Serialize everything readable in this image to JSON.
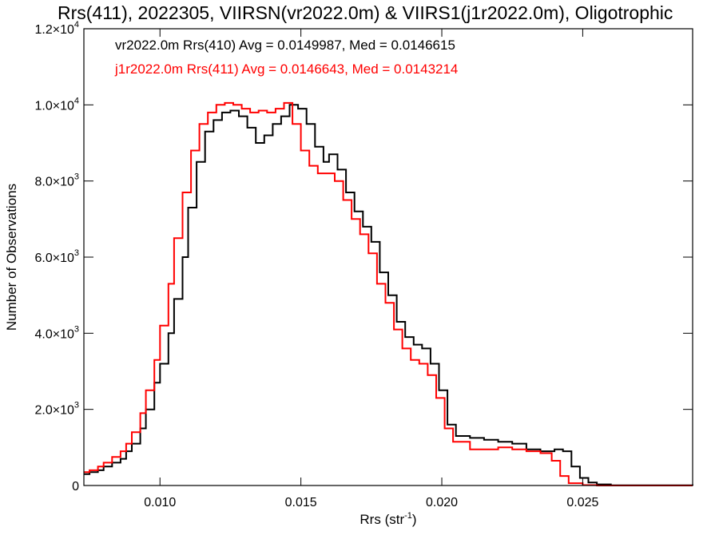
{
  "chart_data": {
    "type": "line",
    "title": "Rrs(411), 2022305, VIIRSN(vr2022.0m) & VIIRS1(j1r2022.0m), Oligotrophic",
    "xlabel": "Rrs (str",
    "xlabel_sup": "-1",
    "xlabel_end": ")",
    "ylabel": "Number of Observations",
    "xlim": [
      0.0073,
      0.0289
    ],
    "ylim": [
      0,
      12000
    ],
    "grid": false,
    "x_ticks": [
      {
        "value": 0.01,
        "label": "0.010"
      },
      {
        "value": 0.015,
        "label": "0.015"
      },
      {
        "value": 0.02,
        "label": "0.020"
      },
      {
        "value": 0.025,
        "label": "0.025"
      }
    ],
    "y_ticks": [
      {
        "value": 0,
        "mant": "0",
        "exp": ""
      },
      {
        "value": 2000,
        "mant": "2.0×10",
        "exp": "3"
      },
      {
        "value": 4000,
        "mant": "4.0×10",
        "exp": "3"
      },
      {
        "value": 6000,
        "mant": "6.0×10",
        "exp": "3"
      },
      {
        "value": 8000,
        "mant": "8.0×10",
        "exp": "3"
      },
      {
        "value": 10000,
        "mant": "1.0×10",
        "exp": "4"
      },
      {
        "value": 12000,
        "mant": "1.2×10",
        "exp": "4"
      }
    ],
    "annotations": [
      {
        "text": "vr2022.0m Rrs(410) Avg = 0.0149987, Med = 0.0146615",
        "color": "#000000"
      },
      {
        "text": "j1r2022.0m Rrs(411) Avg = 0.0146643, Med = 0.0143214",
        "color": "#ff0000"
      }
    ],
    "series": [
      {
        "color": "#000000",
        "points": [
          [
            0.0073,
            300
          ],
          [
            0.0075,
            350
          ],
          [
            0.0078,
            400
          ],
          [
            0.008,
            500
          ],
          [
            0.0083,
            600
          ],
          [
            0.0086,
            700
          ],
          [
            0.0088,
            900
          ],
          [
            0.009,
            1100
          ],
          [
            0.0093,
            1500
          ],
          [
            0.0095,
            2000
          ],
          [
            0.0098,
            2700
          ],
          [
            0.01,
            3200
          ],
          [
            0.0103,
            4000
          ],
          [
            0.0105,
            4900
          ],
          [
            0.0108,
            6000
          ],
          [
            0.011,
            7300
          ],
          [
            0.0113,
            8500
          ],
          [
            0.0116,
            9300
          ],
          [
            0.0119,
            9600
          ],
          [
            0.0122,
            9800
          ],
          [
            0.0125,
            9850
          ],
          [
            0.0128,
            9700
          ],
          [
            0.0131,
            9400
          ],
          [
            0.0134,
            9000
          ],
          [
            0.0137,
            9200
          ],
          [
            0.014,
            9500
          ],
          [
            0.0143,
            9700
          ],
          [
            0.0146,
            10000
          ],
          [
            0.0149,
            9900
          ],
          [
            0.0152,
            9500
          ],
          [
            0.0155,
            8900
          ],
          [
            0.0158,
            8500
          ],
          [
            0.016,
            8700
          ],
          [
            0.0163,
            8300
          ],
          [
            0.0166,
            7700
          ],
          [
            0.0169,
            7200
          ],
          [
            0.0172,
            6800
          ],
          [
            0.0175,
            6400
          ],
          [
            0.0178,
            5600
          ],
          [
            0.0181,
            5000
          ],
          [
            0.0184,
            4300
          ],
          [
            0.0187,
            3900
          ],
          [
            0.019,
            3700
          ],
          [
            0.0193,
            3600
          ],
          [
            0.0196,
            3200
          ],
          [
            0.0199,
            2500
          ],
          [
            0.0202,
            1600
          ],
          [
            0.0205,
            1300
          ],
          [
            0.021,
            1250
          ],
          [
            0.0215,
            1200
          ],
          [
            0.022,
            1150
          ],
          [
            0.0225,
            1100
          ],
          [
            0.023,
            950
          ],
          [
            0.0235,
            900
          ],
          [
            0.024,
            950
          ],
          [
            0.0243,
            900
          ],
          [
            0.0246,
            500
          ],
          [
            0.0249,
            200
          ],
          [
            0.0252,
            80
          ],
          [
            0.0255,
            30
          ],
          [
            0.026,
            5
          ],
          [
            0.0289,
            0
          ]
        ]
      },
      {
        "color": "#ff0000",
        "points": [
          [
            0.0073,
            350
          ],
          [
            0.0075,
            400
          ],
          [
            0.0078,
            500
          ],
          [
            0.008,
            600
          ],
          [
            0.0083,
            750
          ],
          [
            0.0086,
            900
          ],
          [
            0.0088,
            1100
          ],
          [
            0.009,
            1400
          ],
          [
            0.0093,
            1900
          ],
          [
            0.0095,
            2500
          ],
          [
            0.0098,
            3300
          ],
          [
            0.01,
            4200
          ],
          [
            0.0103,
            5300
          ],
          [
            0.0105,
            6500
          ],
          [
            0.0108,
            7700
          ],
          [
            0.0111,
            8800
          ],
          [
            0.0114,
            9500
          ],
          [
            0.0117,
            9800
          ],
          [
            0.012,
            10000
          ],
          [
            0.0123,
            10050
          ],
          [
            0.0126,
            10000
          ],
          [
            0.0129,
            9900
          ],
          [
            0.0132,
            9800
          ],
          [
            0.0135,
            9850
          ],
          [
            0.0138,
            9800
          ],
          [
            0.0141,
            9900
          ],
          [
            0.0144,
            10050
          ],
          [
            0.0147,
            9500
          ],
          [
            0.015,
            8800
          ],
          [
            0.0153,
            8400
          ],
          [
            0.0156,
            8200
          ],
          [
            0.0159,
            8200
          ],
          [
            0.0162,
            8000
          ],
          [
            0.0165,
            7500
          ],
          [
            0.0168,
            7000
          ],
          [
            0.0171,
            6600
          ],
          [
            0.0174,
            6100
          ],
          [
            0.0177,
            5300
          ],
          [
            0.018,
            4800
          ],
          [
            0.0183,
            4100
          ],
          [
            0.0186,
            3600
          ],
          [
            0.0189,
            3300
          ],
          [
            0.0192,
            3200
          ],
          [
            0.0195,
            2900
          ],
          [
            0.0198,
            2300
          ],
          [
            0.0201,
            1500
          ],
          [
            0.0204,
            1150
          ],
          [
            0.021,
            950
          ],
          [
            0.0215,
            950
          ],
          [
            0.022,
            1000
          ],
          [
            0.0225,
            950
          ],
          [
            0.023,
            900
          ],
          [
            0.0235,
            850
          ],
          [
            0.0239,
            650
          ],
          [
            0.0242,
            250
          ],
          [
            0.0245,
            60
          ],
          [
            0.025,
            10
          ],
          [
            0.0255,
            0
          ],
          [
            0.0289,
            0
          ]
        ]
      }
    ]
  }
}
